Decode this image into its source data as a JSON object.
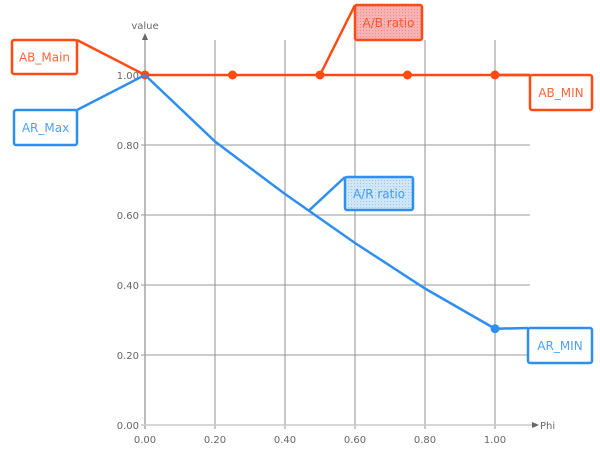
{
  "chart_data": {
    "type": "line",
    "xlabel": "Phi",
    "ylabel": "value",
    "xlim": [
      0,
      1.1
    ],
    "ylim": [
      0,
      1.1
    ],
    "x_ticks": [
      "0.00",
      "0.20",
      "0.40",
      "0.60",
      "0.80",
      "1.00"
    ],
    "y_ticks": [
      "0.00",
      "0.20",
      "0.40",
      "0.60",
      "0.80",
      "1.00"
    ],
    "grid": true,
    "series": [
      {
        "name": "A/B ratio",
        "color": "#ff4a14",
        "x": [
          0,
          0.25,
          0.5,
          0.75,
          1.0
        ],
        "y": [
          1.0,
          1.0,
          1.0,
          1.0,
          1.0
        ],
        "markers": true
      },
      {
        "name": "A/R ratio",
        "color": "#2e8ff0",
        "x": [
          0,
          0.2,
          0.4,
          0.6,
          0.8,
          1.0
        ],
        "y": [
          1.0,
          0.81,
          0.66,
          0.52,
          0.39,
          0.275
        ],
        "markers_at_ends": true
      }
    ],
    "annotations": [
      {
        "text": "AB_Main",
        "color": "#ff4a14",
        "point": [
          0,
          1.0
        ]
      },
      {
        "text": "AR_Max",
        "color": "#2e8ff0",
        "point": [
          0,
          1.0
        ]
      },
      {
        "text": "A/B ratio",
        "color": "#ff4a14",
        "point": [
          0.5,
          1.0
        ],
        "filled": true
      },
      {
        "text": "AB_MIN",
        "color": "#ff4a14",
        "point": [
          1.0,
          1.0
        ]
      },
      {
        "text": "A/R ratio",
        "color": "#2e8ff0",
        "point": [
          0.47,
          0.614
        ],
        "filled": true
      },
      {
        "text": "AR_MIN",
        "color": "#2e8ff0",
        "point": [
          1.0,
          0.275
        ]
      }
    ]
  }
}
